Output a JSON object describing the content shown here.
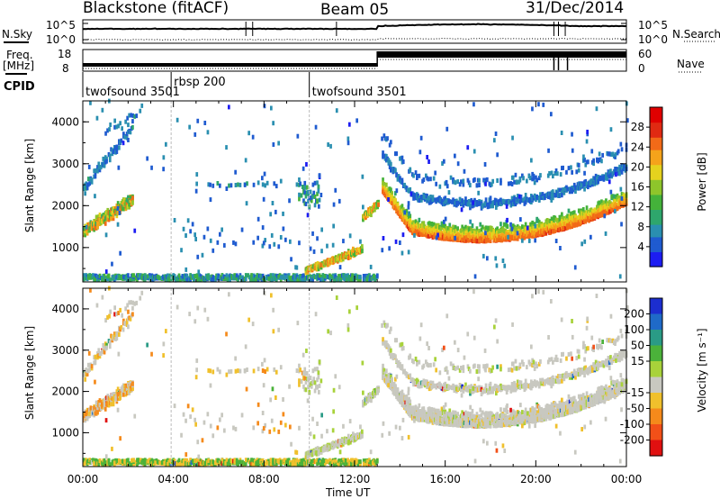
{
  "header": {
    "station": "Blackstone (fitACF)",
    "beam": "Beam 05",
    "date": "31/Dec/2014"
  },
  "left_labels": {
    "nsky": "N.Sky",
    "freq_line1": "Freq.",
    "freq_line2": "[MHz]",
    "cpid": "CPID"
  },
  "right_labels": {
    "nsearch": "N.Search",
    "nave": "Nave"
  },
  "noise_axis": {
    "left_top": "10^5",
    "left_bottom": "10^0",
    "right_top": "10^5",
    "right_bottom": "10^0"
  },
  "freq_axis": {
    "left_top": "18",
    "left_bottom": "8",
    "right_top": "60",
    "right_bottom": "0"
  },
  "cpid_segments": [
    {
      "label": "twofsound 3501",
      "start_hour": 0.0
    },
    {
      "label": "rbsp 200",
      "start_hour": 3.9
    },
    {
      "label": "twofsound 3501",
      "start_hour": 10.0
    }
  ],
  "panels": {
    "power": {
      "ylabel": "Slant Range [km]",
      "colorbar_label": "Power [dB]"
    },
    "velocity": {
      "ylabel": "Slant Range [km]",
      "colorbar_label": "Velocity [m s⁻¹]"
    }
  },
  "x_axis": {
    "label": "Time UT"
  },
  "chart_data": [
    {
      "type": "heatmap",
      "name": "power",
      "xlim": [
        0,
        24
      ],
      "ylim": [
        180,
        4500
      ],
      "xticks": [
        {
          "v": 0,
          "t": "00:00"
        },
        {
          "v": 4,
          "t": "04:00"
        },
        {
          "v": 8,
          "t": "08:00"
        },
        {
          "v": 12,
          "t": "12:00"
        },
        {
          "v": 16,
          "t": "16:00"
        },
        {
          "v": 20,
          "t": "20:00"
        },
        {
          "v": 24,
          "t": "00:00"
        }
      ],
      "yticks": [
        {
          "v": 1000,
          "t": "1000"
        },
        {
          "v": 2000,
          "t": "2000"
        },
        {
          "v": 3000,
          "t": "3000"
        },
        {
          "v": 4000,
          "t": "4000"
        }
      ],
      "colorbar_ticks": [
        {
          "v": 4,
          "t": "4"
        },
        {
          "v": 8,
          "t": "8"
        },
        {
          "v": 12,
          "t": "12"
        },
        {
          "v": 16,
          "t": "16"
        },
        {
          "v": 20,
          "t": "20"
        },
        {
          "v": 24,
          "t": "24"
        },
        {
          "v": 28,
          "t": "28"
        }
      ],
      "colorbar_range": [
        0,
        32
      ],
      "colorbar_colors": [
        "#1c1cf2",
        "#1f5bd0",
        "#2a8fb0",
        "#2ea66c",
        "#44b23a",
        "#8ec52b",
        "#e5d21e",
        "#f5a31b",
        "#f26a18",
        "#e02a12",
        "#e00000"
      ]
    },
    {
      "type": "heatmap",
      "name": "velocity",
      "xlim": [
        0,
        24
      ],
      "ylim": [
        180,
        4500
      ],
      "xticks": [
        {
          "v": 0,
          "t": "00:00"
        },
        {
          "v": 4,
          "t": "04:00"
        },
        {
          "v": 8,
          "t": "08:00"
        },
        {
          "v": 12,
          "t": "12:00"
        },
        {
          "v": 16,
          "t": "16:00"
        },
        {
          "v": 20,
          "t": "20:00"
        },
        {
          "v": 24,
          "t": "00:00"
        }
      ],
      "yticks": [
        {
          "v": 1000,
          "t": "1000"
        },
        {
          "v": 2000,
          "t": "2000"
        },
        {
          "v": 3000,
          "t": "3000"
        },
        {
          "v": 4000,
          "t": "4000"
        }
      ],
      "colorbar_ticks": [
        {
          "v": 200,
          "t": "200"
        },
        {
          "v": 100,
          "t": "100"
        },
        {
          "v": 50,
          "t": "50"
        },
        {
          "v": 15,
          "t": "15"
        },
        {
          "v": -15,
          "t": "-15"
        },
        {
          "v": -50,
          "t": "-50"
        },
        {
          "v": -100,
          "t": "-100"
        },
        {
          "v": -200,
          "t": "-200"
        }
      ],
      "colorbar_colors": [
        "#1c2ecf",
        "#1f6ac8",
        "#2a9b86",
        "#4bb23a",
        "#a8d23a",
        "#c8c8c0",
        "#f0c02c",
        "#f58a1b",
        "#f25018",
        "#e01010"
      ]
    }
  ],
  "colors": {
    "background": "#ffffff",
    "axis": "#000000",
    "vertical_marker": "#bbbbbb"
  }
}
